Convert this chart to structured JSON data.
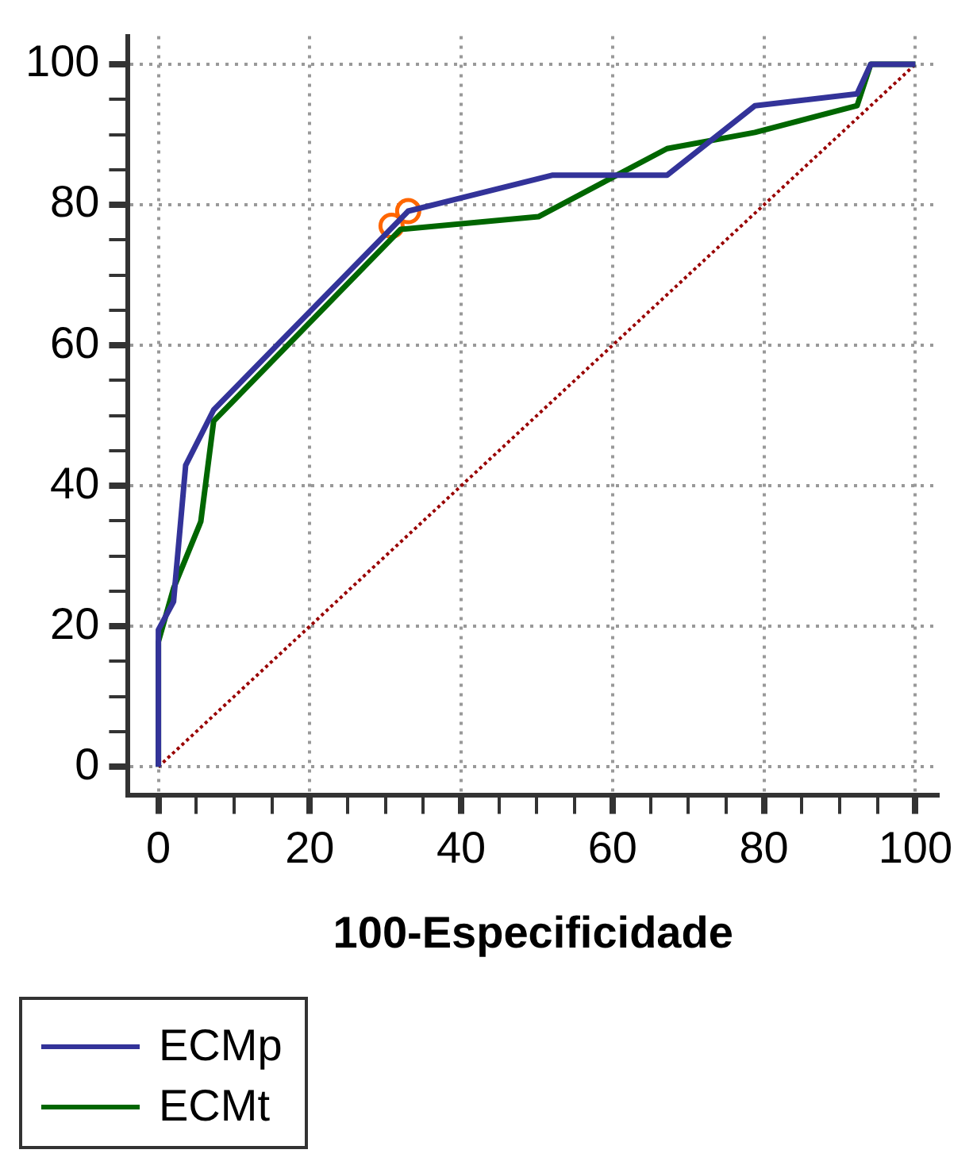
{
  "chart_data": {
    "type": "line",
    "xlabel": "100-Especificidade",
    "xlim": [
      -4,
      103
    ],
    "ylim": [
      -4,
      104
    ],
    "xticks": [
      0,
      {
        "value": 5,
        "label": null
      },
      {
        "value": 10,
        "label": null
      },
      {
        "value": 15,
        "label": null
      },
      20,
      {
        "value": 25,
        "label": null
      },
      {
        "value": 30,
        "label": null
      },
      {
        "value": 35,
        "label": null
      },
      40,
      {
        "value": 45,
        "label": null
      },
      {
        "value": 50,
        "label": null
      },
      {
        "value": 55,
        "label": null
      },
      60,
      {
        "value": 65,
        "label": null
      },
      {
        "value": 70,
        "label": null
      },
      {
        "value": 75,
        "label": null
      },
      80,
      {
        "value": 85,
        "label": null
      },
      {
        "value": 90,
        "label": null
      },
      {
        "value": 95,
        "label": null
      },
      100
    ],
    "yticks": [
      0,
      {
        "value": 5,
        "label": null
      },
      {
        "value": 10,
        "label": null
      },
      {
        "value": 15,
        "label": null
      },
      20,
      {
        "value": 25,
        "label": null
      },
      {
        "value": 30,
        "label": null
      },
      {
        "value": 35,
        "label": null
      },
      40,
      {
        "value": 45,
        "label": null
      },
      {
        "value": 50,
        "label": null
      },
      {
        "value": 55,
        "label": null
      },
      60,
      {
        "value": 65,
        "label": null
      },
      {
        "value": 70,
        "label": null
      },
      {
        "value": 75,
        "label": null
      },
      80,
      {
        "value": 85,
        "label": null
      },
      {
        "value": 90,
        "label": null
      },
      {
        "value": 95,
        "label": null
      },
      100
    ],
    "grid": true,
    "legend": "bottom left",
    "marker": "none",
    "series": [
      {
        "name": "ECMp",
        "color": "#333399",
        "x": [
          0,
          0,
          2,
          3.6,
          7.3,
          33,
          52,
          67.2,
          78.8,
          92.3,
          94.1,
          100
        ],
        "values": [
          0,
          19.5,
          23.5,
          42.9,
          50.8,
          79.1,
          84.2,
          84.2,
          94.1,
          95.8,
          100,
          100
        ]
      },
      {
        "name": "ECMt",
        "color": "#006600",
        "x": [
          0,
          0,
          2,
          5.6,
          7.3,
          32,
          50.2,
          67.2,
          78.8,
          92.3,
          94.1,
          100
        ],
        "values": [
          0,
          17.8,
          25.4,
          34.9,
          49.2,
          76.5,
          78.3,
          88,
          90.3,
          94.1,
          100,
          100
        ]
      },
      {
        "type": "line",
        "color": "#990000",
        "line_style": "dotted",
        "x": [
          0,
          100
        ],
        "values": [
          0,
          100
        ]
      },
      {
        "type": "scatter",
        "color": "#ff6600",
        "marker": "circle",
        "x": [
          30.8,
          33
        ],
        "values": [
          77,
          79.1
        ]
      }
    ]
  }
}
